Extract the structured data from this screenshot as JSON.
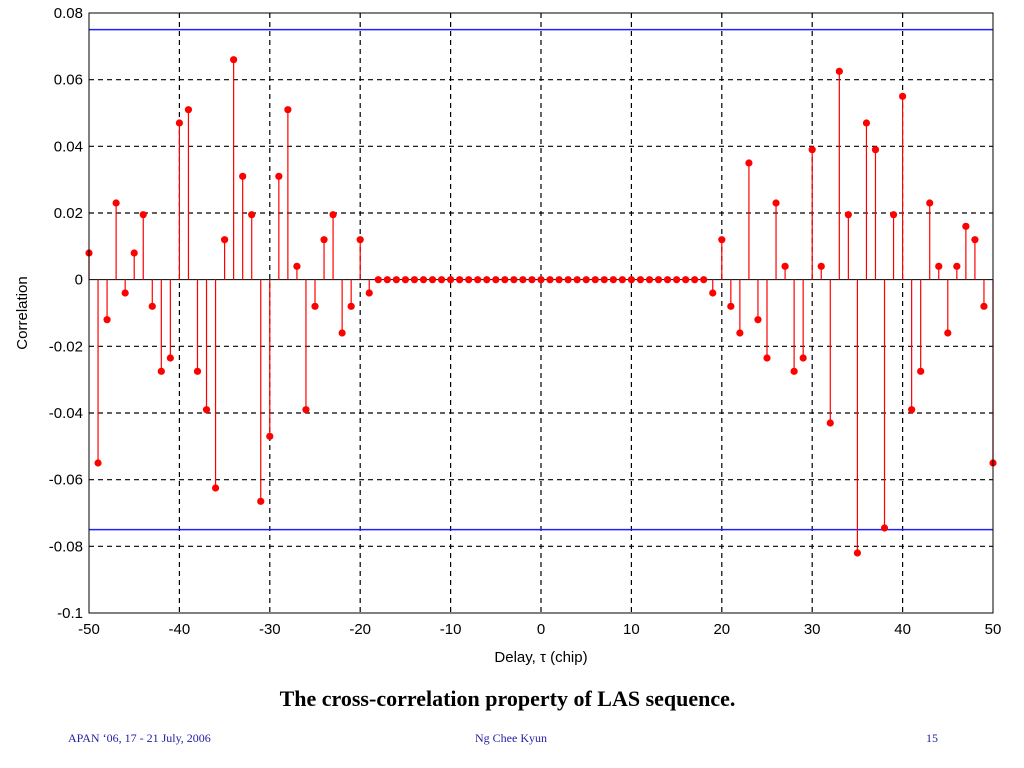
{
  "chart_data": {
    "type": "stem",
    "xlabel": "Delay, τ (chip)",
    "ylabel": "Correlation",
    "xlim": [
      -50,
      50
    ],
    "ylim": [
      -0.1,
      0.08
    ],
    "xticks": [
      "-50",
      "-40",
      "-30",
      "-20",
      "-10",
      "0",
      "10",
      "20",
      "30",
      "40",
      "50"
    ],
    "yticks": [
      "0.08",
      "0.06",
      "0.04",
      "0.02",
      "0",
      "-0.02",
      "-0.04",
      "-0.06",
      "-0.08",
      "-0.1"
    ],
    "grid": true,
    "reference_lines": [
      0.075,
      -0.075
    ],
    "colors": {
      "stem": "#ff0000",
      "reference": "#2020ff",
      "grid": "#000000"
    },
    "x": [
      -50,
      -49,
      -48,
      -47,
      -46,
      -45,
      -44,
      -43,
      -42,
      -41,
      -40,
      -39,
      -38,
      -37,
      -36,
      -35,
      -34,
      -33,
      -32,
      -31,
      -30,
      -29,
      -28,
      -27,
      -26,
      -25,
      -24,
      -23,
      -22,
      -21,
      -20,
      -19,
      -18,
      -17,
      -16,
      -15,
      -14,
      -13,
      -12,
      -11,
      -10,
      -9,
      -8,
      -7,
      -6,
      -5,
      -4,
      -3,
      -2,
      -1,
      0,
      1,
      2,
      3,
      4,
      5,
      6,
      7,
      8,
      9,
      10,
      11,
      12,
      13,
      14,
      15,
      16,
      17,
      18,
      19,
      20,
      21,
      22,
      23,
      24,
      25,
      26,
      27,
      28,
      29,
      30,
      31,
      32,
      33,
      34,
      35,
      36,
      37,
      38,
      39,
      40,
      41,
      42,
      43,
      44,
      45,
      46,
      47,
      48,
      49,
      50
    ],
    "values": [
      0.008,
      -0.055,
      -0.012,
      0.023,
      -0.004,
      0.008,
      0.0195,
      -0.008,
      -0.0275,
      -0.0235,
      0.047,
      0.051,
      -0.0275,
      -0.039,
      -0.0625,
      0.012,
      0.066,
      0.031,
      0.0195,
      -0.0665,
      -0.047,
      0.031,
      0.051,
      0.004,
      -0.039,
      -0.008,
      0.012,
      0.0195,
      -0.016,
      -0.008,
      0.012,
      -0.004,
      0,
      0,
      0,
      0,
      0,
      0,
      0,
      0,
      0,
      0,
      0,
      0,
      0,
      0,
      0,
      0,
      0,
      0,
      0,
      0,
      0,
      0,
      0,
      0,
      0,
      0,
      0,
      0,
      0,
      0,
      0,
      0,
      0,
      0,
      0,
      0,
      0,
      -0.004,
      0.012,
      -0.008,
      -0.016,
      0.035,
      -0.012,
      -0.0235,
      0.023,
      0.004,
      -0.0275,
      -0.0235,
      0.039,
      0.004,
      -0.043,
      0.0625,
      0.0195,
      -0.082,
      0.047,
      0.039,
      -0.0745,
      0.0195,
      0.055,
      -0.039,
      -0.0275,
      0.023,
      0.004,
      -0.016,
      0.004,
      0.016,
      0.012,
      -0.008,
      -0.055
    ]
  },
  "caption": "The cross-correlation property of LAS sequence.",
  "footer": {
    "left": "APAN ‘06, 17 - 21 July, 2006",
    "center": "Ng Chee Kyun",
    "right": "15"
  }
}
